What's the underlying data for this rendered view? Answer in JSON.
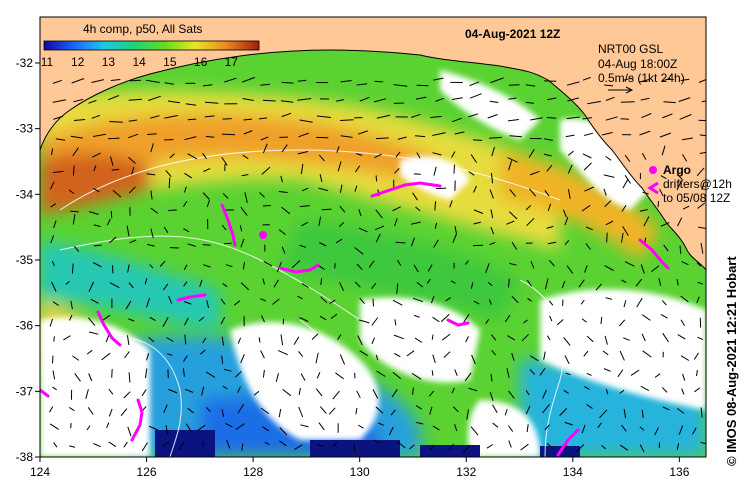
{
  "map": {
    "title": "04-Aug-2021 12Z",
    "colorbar": {
      "title": "4h comp, p50, All Sats",
      "ticks": [
        "11",
        "12",
        "13",
        "14",
        "15",
        "16",
        "17"
      ],
      "range": [
        11,
        18
      ]
    },
    "legend": {
      "current_source": "NRT00 GSL",
      "current_time": "04-Aug 18:00Z",
      "current_scale": "0.5m/s (1kt 24h)",
      "argo_label": "Argo",
      "drifters_line1": "drifters@12h",
      "drifters_line2": "to 05/08 12Z",
      "argo_color": "#ff00ff",
      "drifter_color": "#ff00ff"
    },
    "credit": "© IMOS 08-Aug-2021 12:21 Hobart",
    "x_axis": {
      "range": [
        124,
        136.5
      ],
      "ticks": [
        "124",
        "126",
        "128",
        "130",
        "132",
        "134",
        "136"
      ]
    },
    "y_axis": {
      "range": [
        -38,
        -31.3
      ],
      "ticks": [
        "-32",
        "-33",
        "-34",
        "-35",
        "-36",
        "-37",
        "-38"
      ]
    },
    "colors": {
      "land": "#ffc896",
      "cloud": "#ffffff",
      "warm": "#f08a1e",
      "cool": "#18c8c8",
      "coastline": "#000000"
    }
  }
}
